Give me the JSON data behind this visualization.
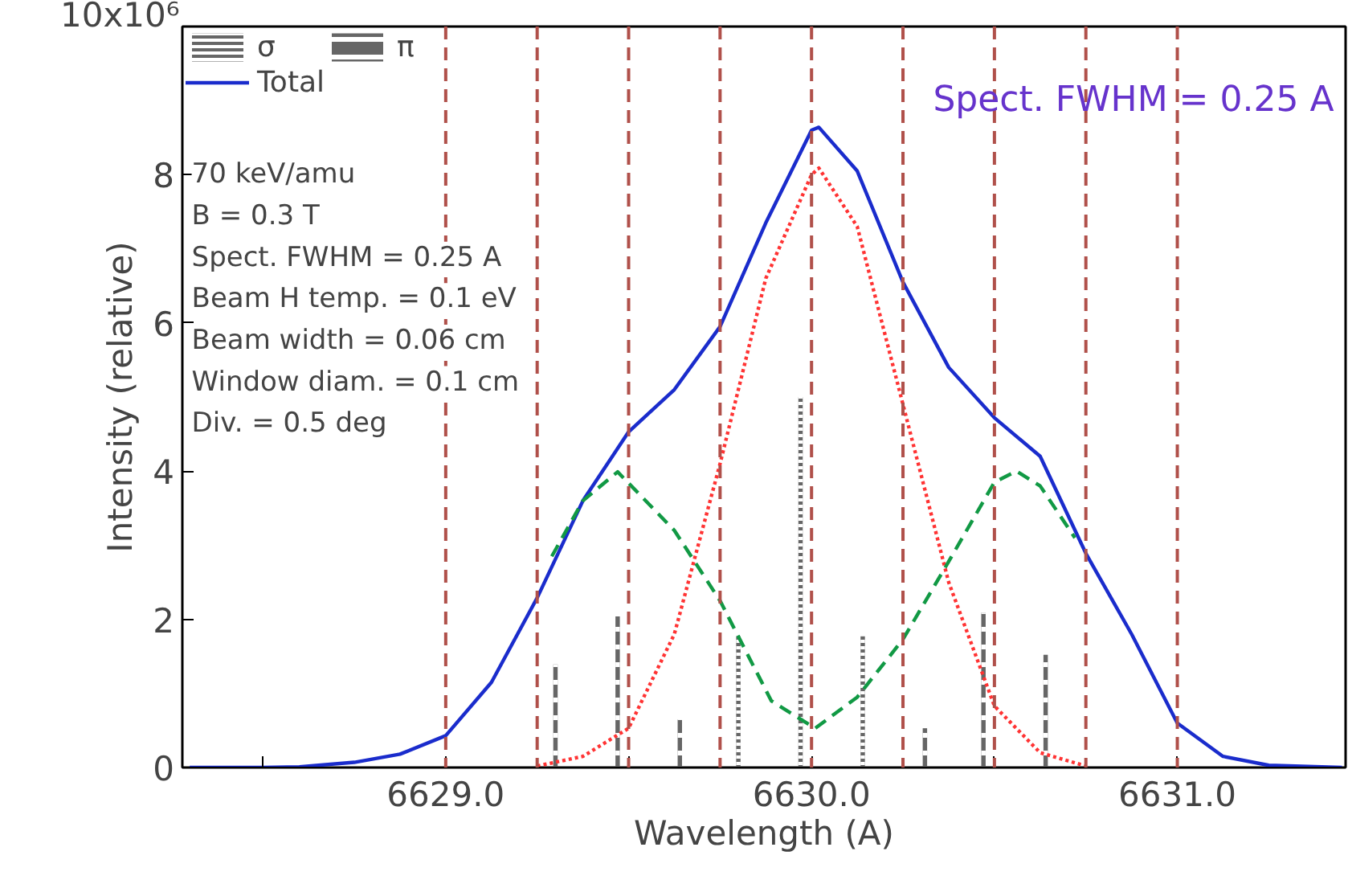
{
  "chart_data": {
    "type": "line",
    "title": "Spect. FWHM = 0.25 A",
    "xlabel": "Wavelength (A)",
    "ylabel": "Intensity (relative)",
    "annotations": [
      "10x10⁶",
      "70 keV/amu",
      "B = 0.3 T",
      "Spect. FWHM = 0.25 A",
      "Beam H temp. = 0.1 eV",
      "Beam width = 0.06 cm",
      "Window diam. = 0.1 cm",
      "Div. = 0.5 deg"
    ],
    "xlim": [
      6628.28,
      6631.46
    ],
    "ylim": [
      0,
      10
    ],
    "xticks": [
      {
        "value": 6628.5,
        "label": null
      },
      {
        "value": 6629.0,
        "label": "6629.0"
      },
      {
        "value": 6629.5,
        "label": null
      },
      {
        "value": 6630.0,
        "label": "6630.0"
      },
      {
        "value": 6630.5,
        "label": null
      },
      {
        "value": 6631.0,
        "label": "6631.0"
      }
    ],
    "yticks": [
      0,
      2,
      4,
      6,
      8,
      {
        "value": 10,
        "label": null
      }
    ],
    "grid": false,
    "legend": "top left",
    "series": [
      {
        "name": "σ",
        "type": "bar",
        "color": "#666666",
        "line_style": "dotted",
        "x": [
          6629.8,
          6629.97,
          6630.14
        ],
        "values": [
          1.77,
          5.0,
          1.77
        ]
      },
      {
        "name": "π",
        "type": "bar",
        "color": "#666666",
        "line_style": "dashed",
        "x": [
          6629.3,
          6629.47,
          6629.64,
          6630.31,
          6630.47,
          6630.64
        ],
        "values": [
          1.39,
          2.04,
          0.65,
          0.53,
          2.09,
          1.52
        ]
      },
      {
        "name": "Total",
        "color": "#1a2ccc",
        "line_style": "solid",
        "x": [
          6628.3,
          6628.5,
          6628.6,
          6628.75,
          6628.875,
          6629.0,
          6629.125,
          6629.25,
          6629.375,
          6629.5,
          6629.625,
          6629.75,
          6629.875,
          6630.0,
          6630.02,
          6630.125,
          6630.25,
          6630.375,
          6630.5,
          6630.625,
          6630.75,
          6630.875,
          6631.0,
          6631.125,
          6631.25,
          6631.45
        ],
        "values": [
          0,
          0,
          0.01,
          0.07,
          0.18,
          0.43,
          1.15,
          2.29,
          3.6,
          4.53,
          5.1,
          5.95,
          7.35,
          8.6,
          8.64,
          8.05,
          6.55,
          5.4,
          4.72,
          4.2,
          2.89,
          1.8,
          0.6,
          0.15,
          0.03,
          0
        ]
      },
      {
        "color": "#ff3333",
        "line_style": "dotted",
        "x": [
          6629.25,
          6629.375,
          6629.5,
          6629.625,
          6629.75,
          6629.875,
          6630.0,
          6630.02,
          6630.125,
          6630.25,
          6630.375,
          6630.5,
          6630.625,
          6630.75
        ],
        "values": [
          0.02,
          0.15,
          0.53,
          1.8,
          4.1,
          6.6,
          8.0,
          8.09,
          7.3,
          4.9,
          2.5,
          0.83,
          0.2,
          0.02
        ]
      },
      {
        "color": "#119944",
        "line_style": "dashed",
        "x": [
          6629.29,
          6629.375,
          6629.47,
          6629.625,
          6629.75,
          6629.89,
          6630.01,
          6630.125,
          6630.25,
          6630.375,
          6630.5,
          6630.56,
          6630.625,
          6630.72
        ],
        "values": [
          2.85,
          3.6,
          3.99,
          3.2,
          2.25,
          0.9,
          0.53,
          0.95,
          1.73,
          2.78,
          3.85,
          4.0,
          3.8,
          3.1
        ]
      }
    ],
    "ref_lines": [
      {
        "axis": "x",
        "value": 6629.0,
        "color": "#b0504a",
        "line_style": "dashed"
      },
      {
        "axis": "x",
        "value": 6629.25,
        "color": "#b0504a",
        "line_style": "dashed"
      },
      {
        "axis": "x",
        "value": 6629.5,
        "color": "#b0504a",
        "line_style": "dashed"
      },
      {
        "axis": "x",
        "value": 6629.75,
        "color": "#b0504a",
        "line_style": "dashed"
      },
      {
        "axis": "x",
        "value": 6630.0,
        "color": "#b0504a",
        "line_style": "dashed"
      },
      {
        "axis": "x",
        "value": 6630.25,
        "color": "#b0504a",
        "line_style": "dashed"
      },
      {
        "axis": "x",
        "value": 6630.5,
        "color": "#b0504a",
        "line_style": "dashed"
      },
      {
        "axis": "x",
        "value": 6630.75,
        "color": "#b0504a",
        "line_style": "dashed"
      },
      {
        "axis": "x",
        "value": 6631.0,
        "color": "#b0504a",
        "line_style": "dashed"
      }
    ]
  }
}
